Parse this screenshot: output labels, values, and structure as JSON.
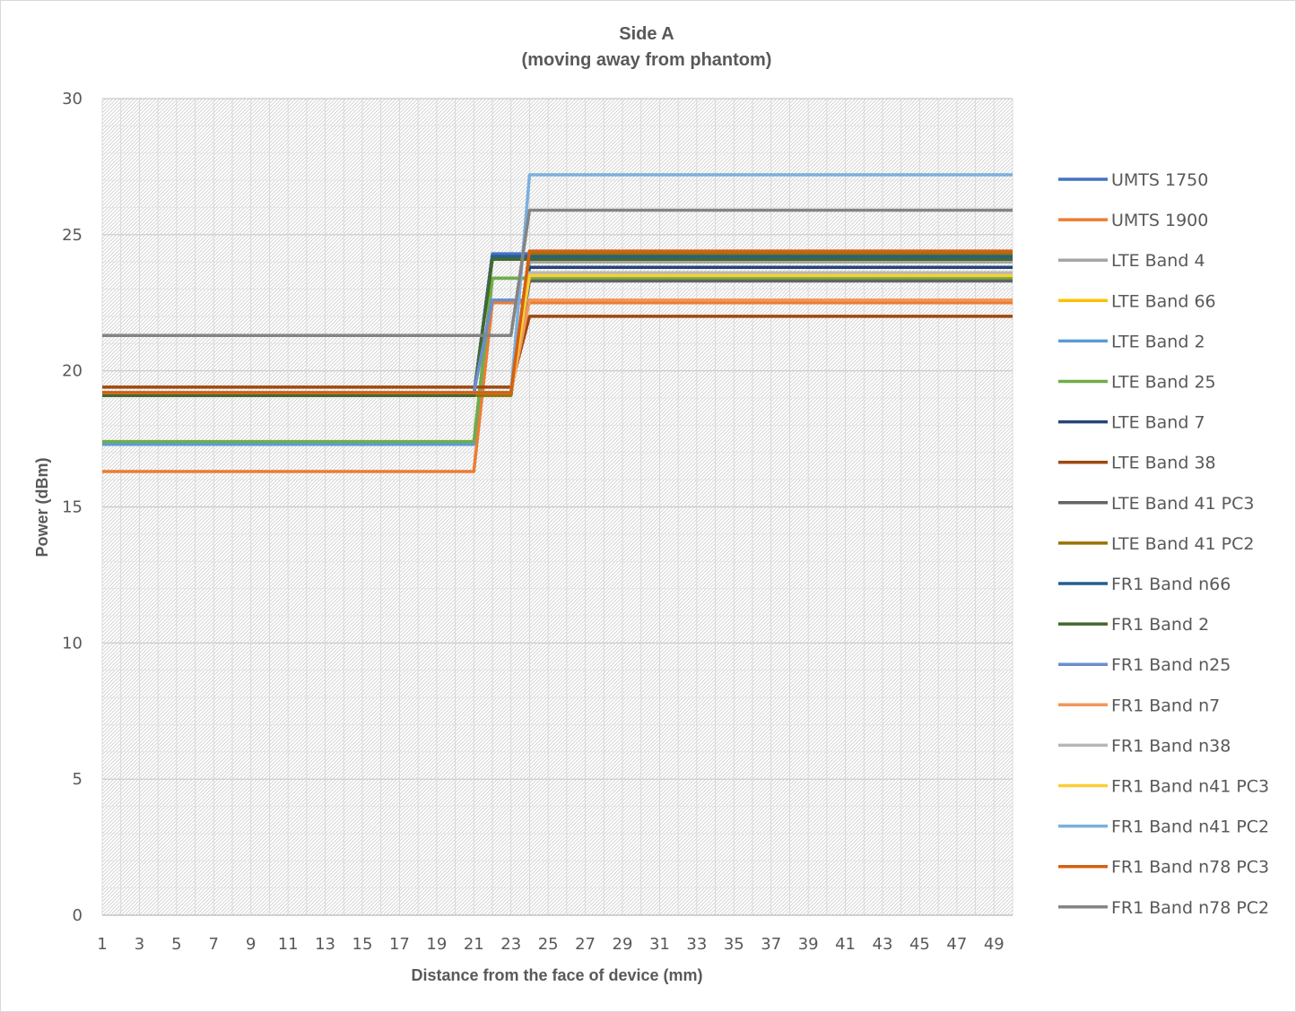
{
  "chart_data": {
    "type": "line",
    "title": "Side A",
    "subtitle": "(moving away from phantom)",
    "xlabel": "Distance from the face of device (mm)",
    "ylabel": "Power (dBm)",
    "xlim": [
      1,
      50
    ],
    "ylim": [
      0,
      30
    ],
    "x_ticks": [
      "1",
      "3",
      "5",
      "7",
      "9",
      "11",
      "13",
      "15",
      "17",
      "19",
      "21",
      "23",
      "25",
      "27",
      "29",
      "31",
      "33",
      "35",
      "37",
      "39",
      "41",
      "43",
      "45",
      "47",
      "49"
    ],
    "y_ticks": [
      "0",
      "5",
      "10",
      "15",
      "20",
      "25",
      "30"
    ],
    "grid": true,
    "legend_position": "right",
    "series": [
      {
        "name": "UMTS 1750",
        "color": "#4472C4",
        "before": 19.1,
        "after": 24.3,
        "step_start": 21,
        "step_end": 22
      },
      {
        "name": "UMTS 1900",
        "color": "#ED7D31",
        "before": 16.3,
        "after": 22.5,
        "step_start": 21,
        "step_end": 22
      },
      {
        "name": "LTE Band 4",
        "color": "#A5A5A5",
        "before": 19.2,
        "after": 24.0,
        "step_start": 23,
        "step_end": 24
      },
      {
        "name": "LTE Band 66",
        "color": "#FFC000",
        "before": 19.1,
        "after": 23.6,
        "step_start": 23,
        "step_end": 24
      },
      {
        "name": "LTE Band 2",
        "color": "#5B9BD5",
        "before": 17.3,
        "after": 23.4,
        "step_start": 21,
        "step_end": 22
      },
      {
        "name": "LTE Band 25",
        "color": "#70AD47",
        "before": 17.4,
        "after": 23.4,
        "step_start": 21,
        "step_end": 22
      },
      {
        "name": "LTE Band 7",
        "color": "#264478",
        "before": 19.1,
        "after": 23.8,
        "step_start": 23,
        "step_end": 24
      },
      {
        "name": "LTE Band 38",
        "color": "#9E480E",
        "before": 19.4,
        "after": 22.0,
        "step_start": 23,
        "step_end": 24
      },
      {
        "name": "LTE Band 41 PC3",
        "color": "#636363",
        "before": 19.2,
        "after": 23.3,
        "step_start": 23,
        "step_end": 24
      },
      {
        "name": "LTE Band 41 PC2",
        "color": "#997300",
        "before": 19.1,
        "after": 24.3,
        "step_start": 23,
        "step_end": 24
      },
      {
        "name": "FR1 Band n66",
        "color": "#255E91",
        "before": 19.1,
        "after": 24.2,
        "step_start": 21,
        "step_end": 22
      },
      {
        "name": "FR1 Band 2",
        "color": "#43682B",
        "before": 19.1,
        "after": 24.1,
        "step_start": 21,
        "step_end": 22
      },
      {
        "name": "FR1 Band n25",
        "color": "#698ED0",
        "before": 19.2,
        "after": 22.6,
        "step_start": 21,
        "step_end": 22
      },
      {
        "name": "FR1 Band n7",
        "color": "#F1975A",
        "before": 19.2,
        "after": 22.6,
        "step_start": 23,
        "step_end": 24
      },
      {
        "name": "FR1 Band n38",
        "color": "#B7B7B7",
        "before": 19.2,
        "after": 23.6,
        "step_start": 23,
        "step_end": 24
      },
      {
        "name": "FR1 Band n41 PC3",
        "color": "#FFCD33",
        "before": 19.2,
        "after": 23.5,
        "step_start": 23,
        "step_end": 24
      },
      {
        "name": "FR1 Band n41 PC2",
        "color": "#7CAFDD",
        "before": 19.2,
        "after": 27.2,
        "step_start": 23,
        "step_end": 24
      },
      {
        "name": "FR1 Band n78 PC3",
        "color": "#D26012",
        "before": 19.2,
        "after": 24.4,
        "step_start": 23,
        "step_end": 24
      },
      {
        "name": "FR1 Band n78 PC2",
        "color": "#848484",
        "before": 21.3,
        "after": 25.9,
        "step_start": 23,
        "step_end": 24
      }
    ]
  }
}
